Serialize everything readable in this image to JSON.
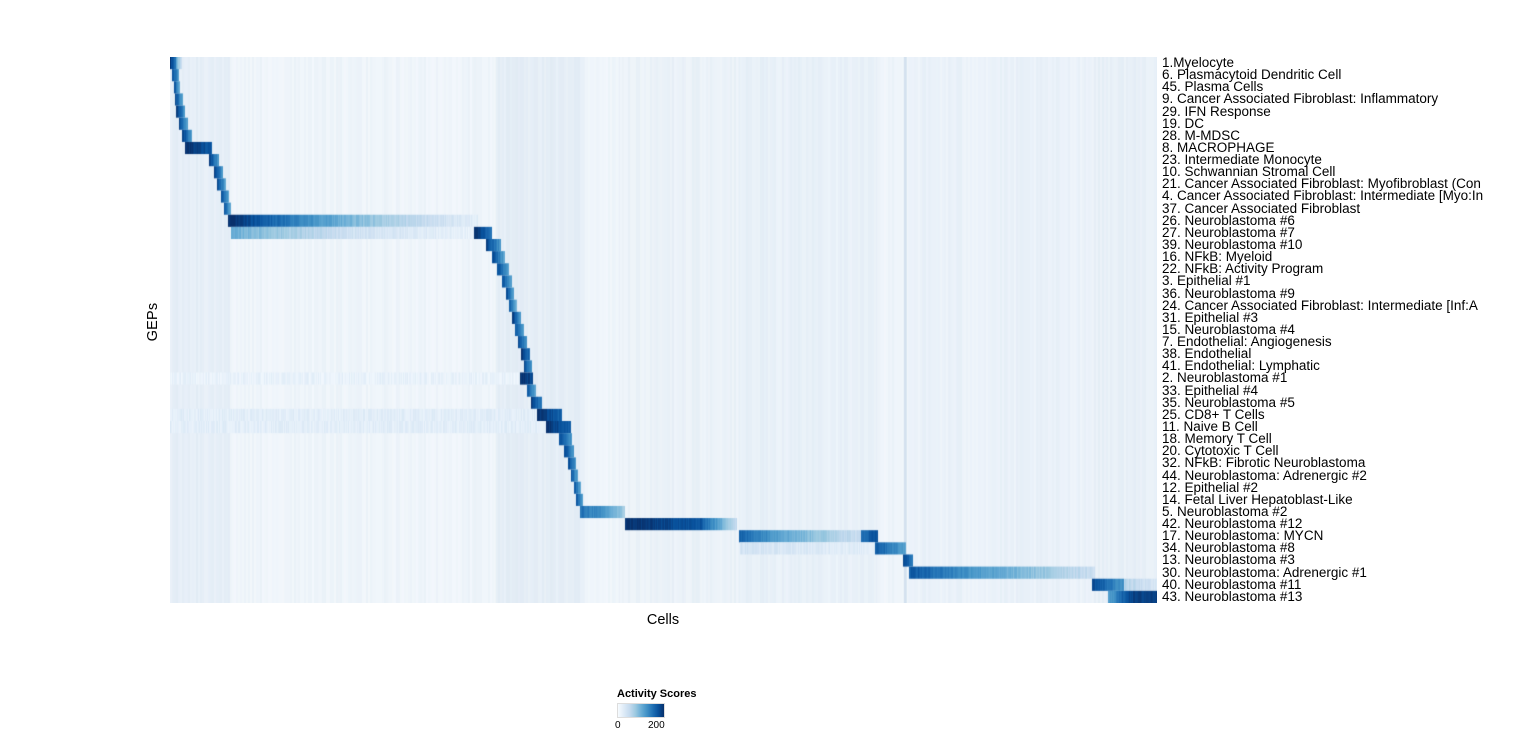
{
  "chart_data": {
    "type": "heatmap",
    "xlabel": "Cells",
    "ylabel": "GEPs",
    "background": "#f3f8fc",
    "colormap": [
      "#f7fbff",
      "#deebf7",
      "#c6dbef",
      "#9ecae1",
      "#6baed6",
      "#4292c6",
      "#2171b5",
      "#08519c",
      "#08306b"
    ],
    "legend": {
      "title": "Activity Scores",
      "min_label": "0",
      "max_label": "200",
      "value_range": [
        0,
        200
      ]
    },
    "column_bands": [
      [
        0.0,
        0.061,
        0.045
      ],
      [
        0.33,
        0.42,
        0.055
      ],
      [
        0.455,
        0.575,
        0.025
      ],
      [
        0.576,
        0.716,
        0.03
      ],
      [
        0.7435,
        0.7465,
        0.16
      ],
      [
        0.748,
        0.935,
        0.02
      ],
      [
        0.935,
        1.0,
        0.035
      ]
    ],
    "rows": [
      {
        "label": "1.Myelocyte",
        "segments": [
          [
            0.0,
            0.006,
            0.95,
            0.7
          ],
          [
            0.006,
            0.012,
            0.5,
            0.2
          ]
        ]
      },
      {
        "label": "6. Plasmacytoid Dendritic Cell",
        "segments": [
          [
            0.002,
            0.009,
            0.9,
            0.6
          ]
        ]
      },
      {
        "label": "45. Plasma Cells",
        "segments": [
          [
            0.004,
            0.01,
            0.85,
            0.55
          ]
        ]
      },
      {
        "label": "9. Cancer Associated Fibroblast: Inflammatory",
        "segments": [
          [
            0.005,
            0.013,
            0.9,
            0.55
          ]
        ]
      },
      {
        "label": "29. IFN Response",
        "segments": [
          [
            0.006,
            0.015,
            0.98,
            0.6
          ]
        ]
      },
      {
        "label": "19. DC",
        "segments": [
          [
            0.009,
            0.018,
            0.9,
            0.55
          ]
        ]
      },
      {
        "label": "28. M-MDSC",
        "segments": [
          [
            0.012,
            0.022,
            0.95,
            0.6
          ]
        ]
      },
      {
        "label": "8. MACROPHAGE",
        "segments": [
          [
            0.015,
            0.043,
            1.0,
            0.85
          ]
        ]
      },
      {
        "label": "23. Intermediate Monocyte",
        "segments": [
          [
            0.04,
            0.05,
            0.95,
            0.6
          ]
        ]
      },
      {
        "label": "10. Schwannian Stromal Cell",
        "segments": [
          [
            0.045,
            0.054,
            0.95,
            0.6
          ]
        ]
      },
      {
        "label": "21. Cancer Associated Fibroblast: Myofibroblast (Con",
        "segments": [
          [
            0.048,
            0.057,
            0.9,
            0.55
          ]
        ]
      },
      {
        "label": "4. Cancer Associated Fibroblast: Intermediate [Myo:In",
        "segments": [
          [
            0.052,
            0.06,
            0.9,
            0.55
          ]
        ]
      },
      {
        "label": "37. Cancer Associated Fibroblast",
        "segments": [
          [
            0.055,
            0.062,
            0.85,
            0.55
          ]
        ]
      },
      {
        "label": "26. Neuroblastoma #6",
        "segments": [
          [
            0.059,
            0.1,
            1.0,
            0.8
          ],
          [
            0.1,
            0.2,
            0.8,
            0.4
          ],
          [
            0.2,
            0.312,
            0.4,
            0.1
          ]
        ]
      },
      {
        "label": "27. Neuroblastoma #7",
        "segments": [
          [
            0.062,
            0.18,
            0.5,
            0.2
          ],
          [
            0.18,
            0.308,
            0.2,
            0.07
          ],
          [
            0.308,
            0.326,
            1.0,
            0.75
          ]
        ]
      },
      {
        "label": "39. Neuroblastoma #10",
        "segments": [
          [
            0.32,
            0.335,
            0.92,
            0.6
          ]
        ]
      },
      {
        "label": "16. NFkB: Myeloid",
        "segments": [
          [
            0.326,
            0.339,
            0.9,
            0.55
          ]
        ]
      },
      {
        "label": "22. NFkB: Activity Program",
        "segments": [
          [
            0.331,
            0.343,
            0.9,
            0.55
          ]
        ]
      },
      {
        "label": "3. Epithelial #1",
        "segments": [
          [
            0.336,
            0.346,
            0.88,
            0.55
          ]
        ]
      },
      {
        "label": "36. Neuroblastoma #9",
        "segments": [
          [
            0.34,
            0.349,
            0.9,
            0.55
          ]
        ]
      },
      {
        "label": "24. Cancer Associated Fibroblast: Intermediate [Inf:A",
        "segments": [
          [
            0.343,
            0.352,
            0.85,
            0.5
          ]
        ]
      },
      {
        "label": "31. Epithelial #3",
        "segments": [
          [
            0.346,
            0.356,
            0.95,
            0.6
          ]
        ]
      },
      {
        "label": "15. Neuroblastoma #4",
        "segments": [
          [
            0.35,
            0.359,
            0.85,
            0.55
          ]
        ]
      },
      {
        "label": "7. Endothelial: Angiogenesis",
        "segments": [
          [
            0.353,
            0.362,
            0.9,
            0.6
          ]
        ]
      },
      {
        "label": "38. Endothelial",
        "segments": [
          [
            0.356,
            0.365,
            1.0,
            0.75
          ]
        ]
      },
      {
        "label": "41. Endothelial: Lymphatic",
        "segments": [
          [
            0.359,
            0.367,
            0.9,
            0.6
          ]
        ]
      },
      {
        "label": "2. Neuroblastoma #1",
        "segments": [
          [
            0.0,
            0.355,
            0.07,
            0.07
          ],
          [
            0.355,
            0.368,
            1.0,
            0.9
          ]
        ]
      },
      {
        "label": "33. Epithelial #4",
        "segments": [
          [
            0.362,
            0.371,
            0.85,
            0.55
          ]
        ]
      },
      {
        "label": "35. Neuroblastoma #5",
        "segments": [
          [
            0.366,
            0.377,
            0.95,
            0.7
          ]
        ]
      },
      {
        "label": "25. CD8+ T Cells",
        "segments": [
          [
            0.0,
            0.372,
            0.1,
            0.1
          ],
          [
            0.372,
            0.397,
            1.0,
            0.8
          ]
        ]
      },
      {
        "label": "11. Naive B Cell",
        "segments": [
          [
            0.0,
            0.381,
            0.1,
            0.1
          ],
          [
            0.381,
            0.406,
            1.0,
            0.8
          ]
        ]
      },
      {
        "label": "18. Memory T Cell",
        "segments": [
          [
            0.394,
            0.407,
            0.9,
            0.6
          ]
        ]
      },
      {
        "label": "20. Cytotoxic T Cell",
        "segments": [
          [
            0.399,
            0.409,
            0.9,
            0.6
          ]
        ]
      },
      {
        "label": "32. NFkB: Fibrotic Neuroblastoma",
        "segments": [
          [
            0.403,
            0.411,
            0.9,
            0.6
          ]
        ]
      },
      {
        "label": "44. Neuroblastoma: Adrenergic #2",
        "segments": [
          [
            0.406,
            0.413,
            0.85,
            0.55
          ]
        ]
      },
      {
        "label": "12. Epithelial #2",
        "segments": [
          [
            0.409,
            0.416,
            0.85,
            0.55
          ]
        ]
      },
      {
        "label": "14. Fetal Liver Hepatoblast-Like",
        "segments": [
          [
            0.411,
            0.418,
            0.85,
            0.55
          ]
        ]
      },
      {
        "label": "5. Neuroblastoma #2",
        "segments": [
          [
            0.415,
            0.44,
            0.75,
            0.6
          ],
          [
            0.44,
            0.461,
            0.6,
            0.35
          ]
        ]
      },
      {
        "label": "42. Neuroblastoma #12",
        "segments": [
          [
            0.461,
            0.537,
            1.0,
            0.85
          ],
          [
            0.537,
            0.574,
            0.85,
            0.25
          ]
        ]
      },
      {
        "label": "17. Neuroblastoma: MYCN",
        "segments": [
          [
            0.576,
            0.63,
            0.8,
            0.5
          ],
          [
            0.63,
            0.7,
            0.5,
            0.22
          ],
          [
            0.7,
            0.717,
            0.75,
            0.9
          ]
        ]
      },
      {
        "label": "34. Neuroblastoma #8",
        "segments": [
          [
            0.578,
            0.714,
            0.18,
            0.1
          ],
          [
            0.714,
            0.746,
            0.85,
            0.55
          ]
        ]
      },
      {
        "label": "13. Neuroblastoma #3",
        "segments": [
          [
            0.743,
            0.753,
            0.95,
            0.7
          ]
        ]
      },
      {
        "label": "30. Neuroblastoma: Adrenergic #1",
        "segments": [
          [
            0.749,
            0.83,
            0.85,
            0.55
          ],
          [
            0.83,
            0.937,
            0.55,
            0.22
          ]
        ]
      },
      {
        "label": "40. Neuroblastoma #11",
        "segments": [
          [
            0.934,
            0.967,
            0.9,
            0.6
          ],
          [
            0.967,
            1.0,
            0.3,
            0.15
          ]
        ]
      },
      {
        "label": "43. Neuroblastoma #13",
        "segments": [
          [
            0.95,
            0.972,
            0.55,
            0.9
          ],
          [
            0.972,
            1.0,
            0.92,
            0.95
          ]
        ]
      }
    ]
  }
}
